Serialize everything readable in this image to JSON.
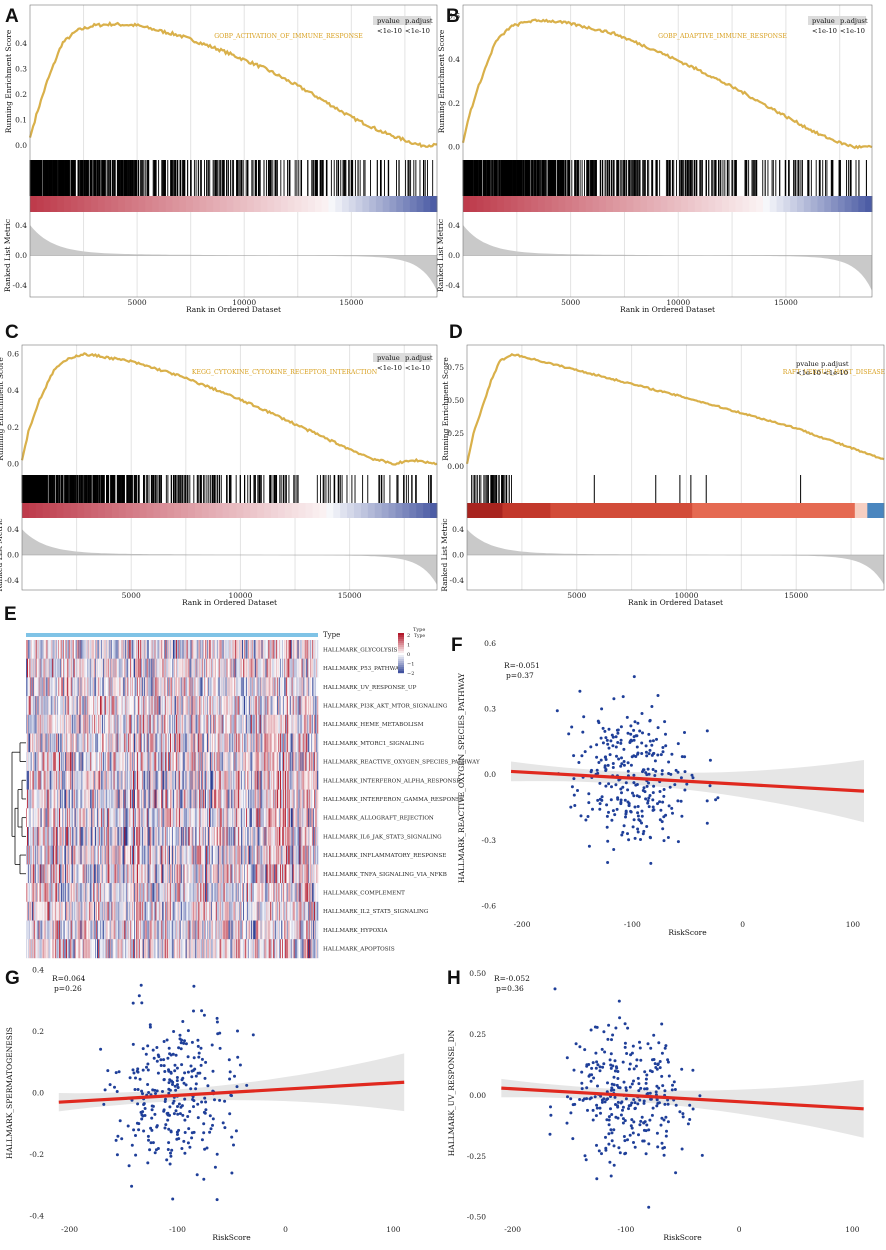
{
  "colors": {
    "es_line": "#d9b04a",
    "hit": "#000000",
    "metric_fill": "#c9c9c9",
    "grid": "#e3e3e3",
    "point": "#1f3f99",
    "fit": "#e0291f",
    "ci_band": "#e6e6e6",
    "heat_red": "#b2182b",
    "heat_blue": "#2c3f94",
    "type_bar": "#7fc3e6"
  },
  "gsea": [
    {
      "letter": "A",
      "geneset": "GOBP_ACTIVATION_OF_IMMUNE_RESPONSE",
      "table": {
        "headers": [
          "pvalue",
          "p.adjust"
        ],
        "values": [
          "<1e-10",
          "<1e-10"
        ]
      }
    },
    {
      "letter": "B",
      "geneset": "GOBP_ADAPTIVE_IMMUNE_RESPONSE",
      "table": {
        "headers": [
          "pvalue",
          "p.adjust"
        ],
        "values": [
          "<1e-10",
          "<1e-10"
        ]
      }
    },
    {
      "letter": "C",
      "geneset": "KEGG_CYTOKINE_CYTOKINE_RECEPTOR_INTERACTION",
      "table": {
        "headers": [
          "pvalue",
          "p.adjust"
        ],
        "values": [
          "<1e-10",
          "<1e-10"
        ]
      }
    },
    {
      "letter": "D",
      "geneset": "RAFT_VERSUS_HOST_DISEASE",
      "table": {
        "headers": [
          "pvalue p.adjust"
        ],
        "values": [
          "<1e-10 <1e-10"
        ]
      }
    }
  ],
  "gsea_axes": {
    "es_ylabel": "Running Enrichment Score",
    "metric_ylabel": "Ranked List Metric",
    "xlabel": "Rank in Ordered Dataset",
    "x_ticks": [
      "5000",
      "10000",
      "15000"
    ],
    "metric_ticks": [
      "0.4",
      "0.0",
      "-0.4"
    ]
  },
  "heatmap": {
    "letter": "E",
    "type_label": "Type",
    "legend": {
      "title": "Type",
      "sub": "Type",
      "ticks": [
        "2",
        "1",
        "0",
        "−1",
        "−2"
      ]
    },
    "rows": [
      "HALLMARK_GLYCOLYSIS",
      "HALLMARK_P53_PATHWAY",
      "HALLMARK_UV_RESPONSE_UP",
      "HALLMARK_PI3K_AKT_MTOR_SIGNALING",
      "HALLMARK_HEME_METABOLISM",
      "HALLMARK_MTORC1_SIGNALING",
      "HALLMARK_REACTIVE_OXYGEN_SPECIES_PATHWAY",
      "HALLMARK_INTERFERON_ALPHA_RESPONSE",
      "HALLMARK_INTERFERON_GAMMA_RESPONSE",
      "HALLMARK_ALLOGRAFT_REJECTION",
      "HALLMARK_IL6_JAK_STAT3_SIGNALING",
      "HALLMARK_INFLAMMATORY_RESPONSE",
      "HALLMARK_TNFA_SIGNALING_VIA_NFKB",
      "HALLMARK_COMPLEMENT",
      "HALLMARK_IL2_STAT5_SIGNALING",
      "HALLMARK_HYPOXIA",
      "HALLMARK_APOPTOSIS"
    ]
  },
  "chart_data": [
    {
      "type": "line",
      "panel": "A",
      "title": "GOBP_ACTIVATION_OF_IMMUNE_RESPONSE",
      "xlabel": "Rank in Ordered Dataset",
      "ylabel": "Running Enrichment Score",
      "xlim": [
        0,
        19000
      ],
      "ylim": [
        -0.05,
        0.55
      ],
      "y_ticks": [
        "0.0",
        "0.1",
        "0.2",
        "0.3",
        "0.4"
      ],
      "x": [
        0,
        300,
        800,
        1500,
        2200,
        3000,
        3800,
        5000,
        7000,
        9000,
        11000,
        13000,
        15000,
        16500,
        17500,
        18200,
        19000
      ],
      "y": [
        0.03,
        0.12,
        0.25,
        0.4,
        0.45,
        0.47,
        0.475,
        0.47,
        0.43,
        0.37,
        0.3,
        0.21,
        0.11,
        0.05,
        0.02,
        0.0,
        0.0
      ]
    },
    {
      "type": "line",
      "panel": "B",
      "title": "GOBP_ADAPTIVE_IMMUNE_RESPONSE",
      "xlabel": "Rank in Ordered Dataset",
      "ylabel": "Running Enrichment Score",
      "xlim": [
        0,
        19000
      ],
      "ylim": [
        -0.05,
        0.65
      ],
      "y_ticks": [
        "0.0",
        "0.2",
        "0.4",
        "0.6"
      ],
      "x": [
        0,
        300,
        800,
        1500,
        2200,
        3000,
        3800,
        5000,
        7000,
        9000,
        11000,
        13000,
        15000,
        16500,
        17500,
        18200,
        19000
      ],
      "y": [
        0.02,
        0.15,
        0.3,
        0.48,
        0.55,
        0.575,
        0.58,
        0.565,
        0.52,
        0.44,
        0.35,
        0.25,
        0.14,
        0.06,
        0.02,
        0.0,
        0.0
      ]
    },
    {
      "type": "line",
      "panel": "C",
      "title": "KEGG_CYTOKINE_CYTOKINE_RECEPTOR_INTERACTION",
      "xlabel": "Rank in Ordered Dataset",
      "ylabel": "Running Enrichment Score",
      "xlim": [
        0,
        19000
      ],
      "ylim": [
        -0.05,
        0.65
      ],
      "y_ticks": [
        "0.0",
        "0.2",
        "0.4",
        "0.6"
      ],
      "x": [
        0,
        300,
        800,
        1500,
        2200,
        2800,
        3500,
        5000,
        7000,
        9000,
        11000,
        13000,
        15000,
        16000,
        17000,
        18000,
        19000
      ],
      "y": [
        0.02,
        0.18,
        0.35,
        0.52,
        0.58,
        0.6,
        0.59,
        0.56,
        0.49,
        0.4,
        0.3,
        0.19,
        0.08,
        0.03,
        0.0,
        0.02,
        0.0
      ]
    },
    {
      "type": "line",
      "panel": "D",
      "title": "RAFT_VERSUS_HOST_DISEASE",
      "xlabel": "Rank in Ordered Dataset",
      "ylabel": "Running Enrichment Score",
      "xlim": [
        0,
        19000
      ],
      "ylim": [
        -0.05,
        0.92
      ],
      "y_ticks": [
        "0.00",
        "0.25",
        "0.50",
        "0.75"
      ],
      "x": [
        0,
        300,
        700,
        1100,
        1500,
        2100,
        5000,
        10000,
        15000,
        19000
      ],
      "y": [
        0.02,
        0.25,
        0.45,
        0.65,
        0.8,
        0.85,
        0.73,
        0.52,
        0.29,
        0.05
      ]
    },
    {
      "type": "scatter",
      "panel": "F",
      "xlabel": "RiskScore",
      "ylabel": "HALLMARK_REACTIVE_OXYGEN_SPECIES_PATHWAY",
      "xlim": [
        -220,
        120
      ],
      "ylim": [
        -0.65,
        0.62
      ],
      "x_ticks": [
        "-200",
        "-100",
        "0",
        "100"
      ],
      "y_ticks": [
        "0.6",
        "0.3",
        "0.0",
        "-0.3",
        "-0.6"
      ],
      "annotation": [
        "R=-0.051",
        "p=0.37"
      ],
      "fit": {
        "x": [
          -210,
          110
        ],
        "y": [
          0.015,
          -0.075
        ]
      }
    },
    {
      "type": "scatter",
      "panel": "G",
      "xlabel": "RiskScore",
      "ylabel": "HALLMARK_SPERMATOGENESIS",
      "xlim": [
        -220,
        120
      ],
      "ylim": [
        -0.42,
        0.42
      ],
      "x_ticks": [
        "-200",
        "-100",
        "0",
        "100"
      ],
      "y_ticks": [
        "0.4",
        "0.2",
        "0.0",
        "-0.2",
        "-0.4"
      ],
      "annotation": [
        "R=0.064",
        "p=0.26"
      ],
      "fit": {
        "x": [
          -210,
          110
        ],
        "y": [
          -0.03,
          0.035
        ]
      }
    },
    {
      "type": "scatter",
      "panel": "H",
      "xlabel": "RiskScore",
      "ylabel": "HALLMARK_UV_RESPONSE_DN",
      "xlim": [
        -220,
        120
      ],
      "ylim": [
        -0.52,
        0.54
      ],
      "x_ticks": [
        "-200",
        "-100",
        "0",
        "100"
      ],
      "y_ticks": [
        "0.50",
        "0.25",
        "0.00",
        "-0.25",
        "-0.50"
      ],
      "annotation": [
        "R=-0.052",
        "p=0.36"
      ],
      "fit": {
        "x": [
          -210,
          110
        ],
        "y": [
          0.03,
          -0.055
        ]
      }
    }
  ]
}
